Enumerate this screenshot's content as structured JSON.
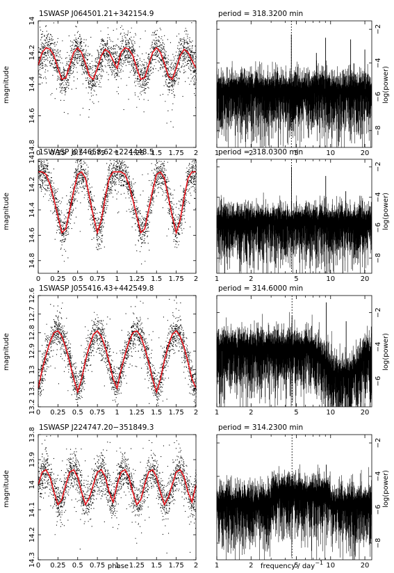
{
  "figure": {
    "xlabel_left": "phase",
    "xlabel_right": "frequency / day",
    "xlabel_right_exp": "−1"
  },
  "colors": {
    "points": "#000000",
    "fold_model": "#e8141c",
    "marker_line": "#000000"
  },
  "chart_data": [
    {
      "type": "scatter",
      "title": "1SWASP J064501.21+342154.9",
      "xlabel": "",
      "ylabel": "magnitude",
      "xlim": [
        0,
        2
      ],
      "ylim": [
        14.8,
        14.0
      ],
      "y_inverted": true,
      "xticks": [
        "0",
        "0.25",
        "0.5",
        "0.75",
        "1",
        "1.25",
        "1.5",
        "1.75",
        "2"
      ],
      "yticks": [
        "14",
        "14.2",
        "14.4",
        "14.6",
        "14.8"
      ],
      "series": [
        {
          "x": [
            0,
            0.05,
            0.1,
            0.15,
            0.2,
            0.25,
            0.3,
            0.35,
            0.4,
            0.45,
            0.5,
            0.55,
            0.6,
            0.65,
            0.7,
            0.75,
            0.8,
            0.85,
            0.9,
            0.95,
            1,
            1.05,
            1.1,
            1.15,
            1.2,
            1.25,
            1.3,
            1.35,
            1.4,
            1.45,
            1.5,
            1.55,
            1.6,
            1.65,
            1.7,
            1.75,
            1.8,
            1.85,
            1.9,
            1.95,
            2
          ],
          "y": [
            14.28,
            14.2,
            14.17,
            14.18,
            14.22,
            14.3,
            14.37,
            14.36,
            14.28,
            14.2,
            14.17,
            14.2,
            14.27,
            14.35,
            14.37,
            14.3,
            14.22,
            14.18,
            14.2,
            14.25,
            14.3,
            14.2,
            14.17,
            14.18,
            14.22,
            14.3,
            14.37,
            14.36,
            14.28,
            14.2,
            14.17,
            14.2,
            14.27,
            14.35,
            14.37,
            14.3,
            14.22,
            14.18,
            14.2,
            14.25,
            14.3
          ]
        }
      ]
    },
    {
      "type": "line",
      "title": "period = 318.3200 min",
      "xlabel": "",
      "ylabel": "log(power)",
      "x_scale": "log",
      "xlim": [
        1,
        23
      ],
      "ylim": [
        -9,
        -1.5
      ],
      "xticks": [
        "1",
        "2",
        "5",
        "10",
        "20"
      ],
      "yticks": [
        "−2",
        "−4",
        "−6",
        "−8"
      ],
      "marker_frequency": 4.52,
      "series": [
        {
          "x": [
            1.2,
            2.0,
            3.0,
            4.52,
            7.5,
            9.04,
            15.0,
            20.0
          ],
          "y": [
            -5.6,
            -5.7,
            -5.8,
            -2.3,
            -3.4,
            -2.5,
            -2.6,
            -3.2
          ]
        }
      ]
    },
    {
      "type": "scatter",
      "title": "1SWASP J074658.62+224448.5",
      "xlabel": "",
      "ylabel": "magnitude",
      "xlim": [
        0,
        2
      ],
      "ylim": [
        14.9,
        14.0
      ],
      "y_inverted": true,
      "xticks": [
        "0",
        "0.25",
        "0.5",
        "0.75",
        "1",
        "1.25",
        "1.5",
        "1.75",
        "2"
      ],
      "yticks": [
        "14",
        "14.2",
        "14.4",
        "14.6",
        "14.8"
      ],
      "series": [
        {
          "x": [
            0,
            0.05,
            0.1,
            0.15,
            0.2,
            0.25,
            0.3,
            0.35,
            0.4,
            0.45,
            0.5,
            0.55,
            0.6,
            0.65,
            0.7,
            0.75,
            0.8,
            0.85,
            0.9,
            0.95,
            1,
            1.05,
            1.1,
            1.15,
            1.2,
            1.25,
            1.3,
            1.35,
            1.4,
            1.45,
            1.5,
            1.55,
            1.6,
            1.65,
            1.7,
            1.75,
            1.8,
            1.85,
            1.9,
            1.95,
            2
          ],
          "y": [
            14.1,
            14.1,
            14.12,
            14.2,
            14.32,
            14.45,
            14.58,
            14.55,
            14.4,
            14.25,
            14.12,
            14.1,
            14.15,
            14.3,
            14.45,
            14.58,
            14.48,
            14.3,
            14.15,
            14.1,
            14.1,
            14.1,
            14.12,
            14.2,
            14.32,
            14.45,
            14.58,
            14.55,
            14.4,
            14.25,
            14.12,
            14.1,
            14.15,
            14.3,
            14.45,
            14.58,
            14.48,
            14.3,
            14.15,
            14.1,
            14.1
          ]
        }
      ]
    },
    {
      "type": "line",
      "title": "period = 318.0300 min",
      "xlabel": "",
      "ylabel": "log(power)",
      "x_scale": "log",
      "xlim": [
        1,
        23
      ],
      "ylim": [
        -9,
        -1.5
      ],
      "xticks": [
        "1",
        "2",
        "5",
        "10",
        "20"
      ],
      "yticks": [
        "−2",
        "−4",
        "−6",
        "−8"
      ],
      "marker_frequency": 4.53,
      "series": [
        {
          "x": [
            2.5,
            4.53,
            6.0,
            9.06,
            13.6,
            18.1
          ],
          "y": [
            -4.5,
            -2.0,
            -4.7,
            -2.6,
            -3.6,
            -3.9
          ]
        }
      ]
    },
    {
      "type": "scatter",
      "title": "1SWASP J055416.43+442549.8",
      "xlabel": "",
      "ylabel": "magnitude",
      "xlim": [
        0,
        2
      ],
      "ylim": [
        13.2,
        12.6
      ],
      "y_inverted": true,
      "xticks": [
        "0",
        "0.25",
        "0.5",
        "0.75",
        "1",
        "1.25",
        "1.5",
        "1.75",
        "2"
      ],
      "yticks": [
        "12.6",
        "12.7",
        "12.8",
        "12.9",
        "13",
        "13.1",
        "13.2"
      ],
      "series": [
        {
          "x": [
            0,
            0.05,
            0.1,
            0.15,
            0.2,
            0.25,
            0.3,
            0.35,
            0.4,
            0.45,
            0.5,
            0.55,
            0.6,
            0.65,
            0.7,
            0.75,
            0.8,
            0.85,
            0.9,
            0.95,
            1,
            1.05,
            1.1,
            1.15,
            1.2,
            1.25,
            1.3,
            1.35,
            1.4,
            1.45,
            1.5,
            1.55,
            1.6,
            1.65,
            1.7,
            1.75,
            1.8,
            1.85,
            1.9,
            1.95,
            2
          ],
          "y": [
            13.1,
            13.0,
            12.92,
            12.85,
            12.8,
            12.79,
            12.82,
            12.88,
            12.96,
            13.05,
            13.12,
            13.05,
            12.95,
            12.87,
            12.81,
            12.79,
            12.82,
            12.88,
            12.96,
            13.05,
            13.1,
            13.0,
            12.92,
            12.85,
            12.8,
            12.79,
            12.82,
            12.88,
            12.96,
            13.05,
            13.12,
            13.05,
            12.95,
            12.87,
            12.81,
            12.79,
            12.82,
            12.88,
            12.96,
            13.05,
            13.1
          ]
        }
      ]
    },
    {
      "type": "line",
      "title": "period = 314.6000 min",
      "xlabel": "",
      "ylabel": "log(power)",
      "x_scale": "log",
      "xlim": [
        1,
        23
      ],
      "ylim": [
        -7.5,
        -1
      ],
      "xticks": [
        "1",
        "2",
        "5",
        "10",
        "20"
      ],
      "yticks": [
        "−2",
        "−4",
        "−6"
      ],
      "marker_frequency": 4.58,
      "series": [
        {
          "x": [
            3.2,
            4.58,
            6.5,
            9.15,
            13.7,
            18.3
          ],
          "y": [
            -2.8,
            -2.2,
            -3.0,
            -1.4,
            -2.5,
            -3.5
          ]
        }
      ]
    },
    {
      "type": "scatter",
      "title": "1SWASP J224747.20−351849.3",
      "xlabel": "phase",
      "ylabel": "magnitude",
      "xlim": [
        0,
        2
      ],
      "ylim": [
        14.3,
        13.8
      ],
      "y_inverted": true,
      "xticks": [
        "0",
        "0.25",
        "0.5",
        "0.75",
        "1",
        "1.25",
        "1.5",
        "1.75",
        "2"
      ],
      "yticks": [
        "13.8",
        "13.9",
        "14",
        "14.1",
        "14.2",
        "14.3"
      ],
      "series": [
        {
          "x": [
            0,
            0.05,
            0.1,
            0.15,
            0.2,
            0.25,
            0.3,
            0.35,
            0.4,
            0.45,
            0.5,
            0.55,
            0.6,
            0.65,
            0.7,
            0.75,
            0.8,
            0.85,
            0.9,
            0.95,
            1,
            1.05,
            1.1,
            1.15,
            1.2,
            1.25,
            1.3,
            1.35,
            1.4,
            1.45,
            1.5,
            1.55,
            1.6,
            1.65,
            1.7,
            1.75,
            1.8,
            1.85,
            1.9,
            1.95,
            2
          ],
          "y": [
            14.0,
            13.95,
            13.94,
            13.97,
            14.03,
            14.08,
            14.06,
            14.0,
            13.95,
            13.94,
            13.97,
            14.03,
            14.08,
            14.05,
            14.0,
            13.95,
            13.94,
            13.97,
            14.03,
            14.07,
            14.0,
            13.95,
            13.94,
            13.97,
            14.03,
            14.08,
            14.06,
            14.0,
            13.95,
            13.94,
            13.97,
            14.03,
            14.08,
            14.05,
            14.0,
            13.95,
            13.94,
            13.97,
            14.03,
            14.07,
            14.0
          ]
        }
      ]
    },
    {
      "type": "line",
      "title": "period = 314.2300 min",
      "xlabel": "frequency / day",
      "ylabel": "log(power)",
      "x_scale": "log",
      "xlim": [
        1,
        23
      ],
      "ylim": [
        -9,
        -1.5
      ],
      "xticks": [
        "1",
        "2",
        "5",
        "10",
        "20"
      ],
      "yticks": [
        "−2",
        "−4",
        "−6",
        "−8"
      ],
      "marker_frequency": 4.58,
      "series": [
        {
          "x": [
            4.58,
            9.17
          ],
          "y": [
            -4.6,
            -3.3
          ]
        }
      ]
    }
  ]
}
